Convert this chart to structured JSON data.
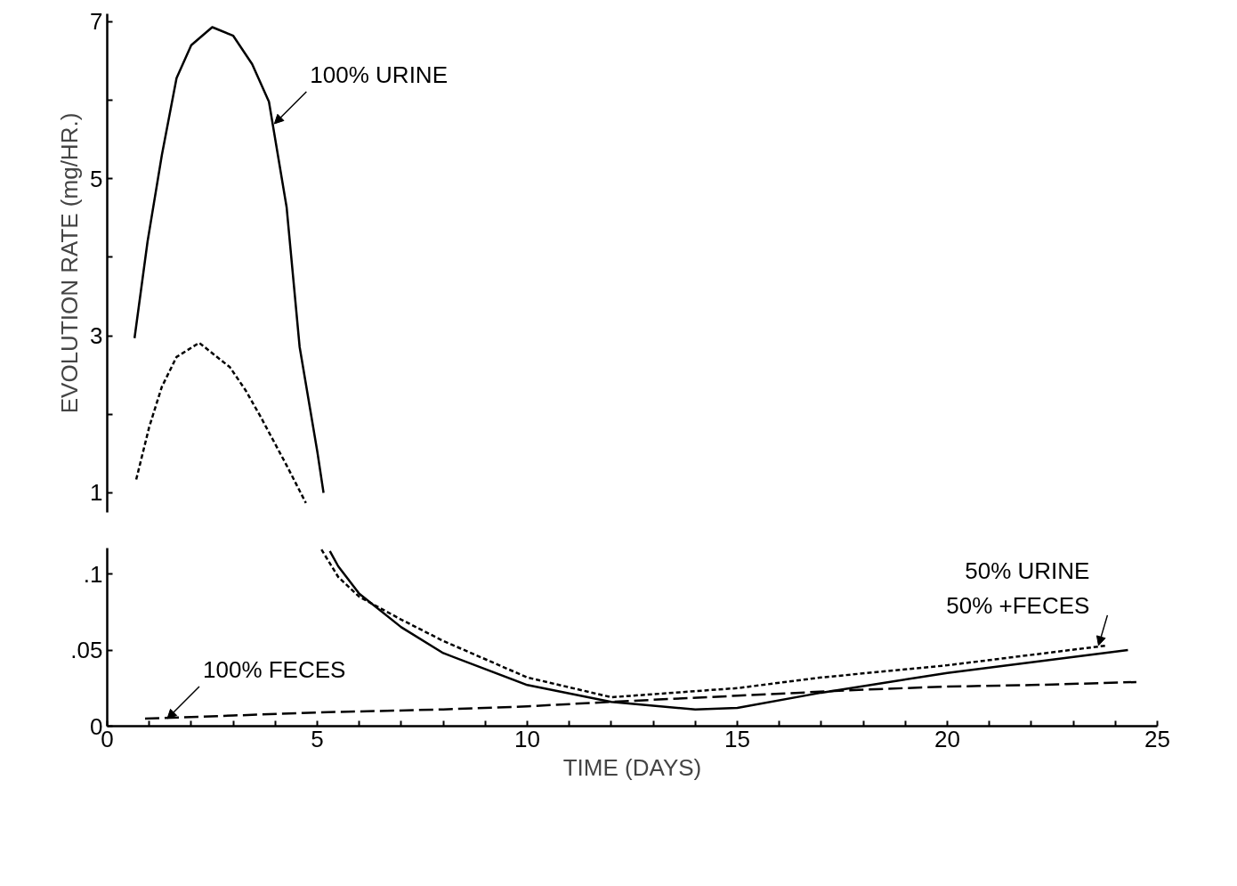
{
  "chart_data": [
    {
      "type": "line",
      "ylabel": "EVOLUTION RATE (mg/HR.)",
      "tick_labels": "y",
      "xlim": [
        0,
        25
      ],
      "ylim": [
        0.75,
        7.1
      ],
      "yticks": [
        1,
        {
          "value": 2,
          "label": null
        },
        3,
        {
          "value": 4,
          "label": null
        },
        5,
        {
          "value": 6,
          "label": null
        },
        7
      ],
      "series": [
        {
          "color": "#000000",
          "line_style": "solid",
          "x": [
            0.65,
            0.96,
            1.3,
            1.65,
            2.0,
            2.5,
            3.0,
            3.45,
            3.85,
            4.27,
            4.58,
            5.0,
            5.15
          ],
          "values": [
            2.97,
            4.2,
            5.3,
            6.28,
            6.7,
            6.93,
            6.82,
            6.46,
            5.98,
            4.64,
            2.86,
            1.53,
            1.0
          ]
        },
        {
          "color": "#000000",
          "line_style": "dotted",
          "x": [
            0.69,
            1.0,
            1.3,
            1.65,
            2.19,
            2.92,
            3.3,
            3.65,
            4.27,
            4.73
          ],
          "values": [
            1.17,
            1.84,
            2.35,
            2.73,
            2.91,
            2.6,
            2.3,
            1.97,
            1.35,
            0.87
          ]
        }
      ],
      "annotations": [
        {
          "text": "100% URINE",
          "x": 3.98,
          "y": 5.7
        }
      ]
    },
    {
      "type": "line",
      "xlabel": "TIME (DAYS)",
      "xlim": [
        0,
        25
      ],
      "ylim": [
        0,
        0.117
      ],
      "xticks": [
        0,
        {
          "value": 1,
          "label": null
        },
        {
          "value": 2,
          "label": null
        },
        {
          "value": 3,
          "label": null
        },
        {
          "value": 4,
          "label": null
        },
        5,
        {
          "value": 6,
          "label": null
        },
        {
          "value": 7,
          "label": null
        },
        {
          "value": 8,
          "label": null
        },
        {
          "value": 9,
          "label": null
        },
        10,
        {
          "value": 11,
          "label": null
        },
        {
          "value": 12,
          "label": null
        },
        {
          "value": 13,
          "label": null
        },
        {
          "value": 14,
          "label": null
        },
        15,
        {
          "value": 16,
          "label": null
        },
        {
          "value": 17,
          "label": null
        },
        {
          "value": 18,
          "label": null
        },
        {
          "value": 19,
          "label": null
        },
        20,
        {
          "value": 21,
          "label": null
        },
        {
          "value": 22,
          "label": null
        },
        {
          "value": 23,
          "label": null
        },
        {
          "value": 24,
          "label": null
        },
        25
      ],
      "yticks": [
        0,
        {
          "value": 0.05,
          "label": ".05"
        },
        {
          "value": 0.1,
          "label": ".1"
        }
      ],
      "series": [
        {
          "color": "#000000",
          "line_style": "solid",
          "x": [
            5.3,
            5.5,
            6,
            7,
            8,
            10,
            12,
            14,
            15,
            17,
            20,
            24.3
          ],
          "values": [
            0.115,
            0.105,
            0.087,
            0.065,
            0.048,
            0.027,
            0.016,
            0.011,
            0.012,
            0.022,
            0.035,
            0.05
          ]
        },
        {
          "color": "#000000",
          "line_style": "dotted",
          "x": [
            5.1,
            5.5,
            6,
            7,
            8,
            10,
            12,
            13.5,
            15,
            17,
            20,
            23.8
          ],
          "values": [
            0.116,
            0.098,
            0.085,
            0.07,
            0.056,
            0.032,
            0.019,
            0.022,
            0.025,
            0.032,
            0.04,
            0.053
          ]
        },
        {
          "color": "#000000",
          "line_style": "dashed",
          "x": [
            0.9,
            3,
            5,
            8,
            10,
            12,
            15,
            18,
            20,
            22,
            24.5
          ],
          "values": [
            0.005,
            0.007,
            0.009,
            0.011,
            0.013,
            0.016,
            0.02,
            0.024,
            0.026,
            0.027,
            0.029
          ]
        }
      ],
      "annotations": [
        {
          "text": "100% FECES",
          "x": 1.43,
          "y": 0.005
        },
        {
          "text": "50% URINE\n50% +FECES",
          "x": 23.6,
          "y": 0.053
        }
      ]
    }
  ]
}
